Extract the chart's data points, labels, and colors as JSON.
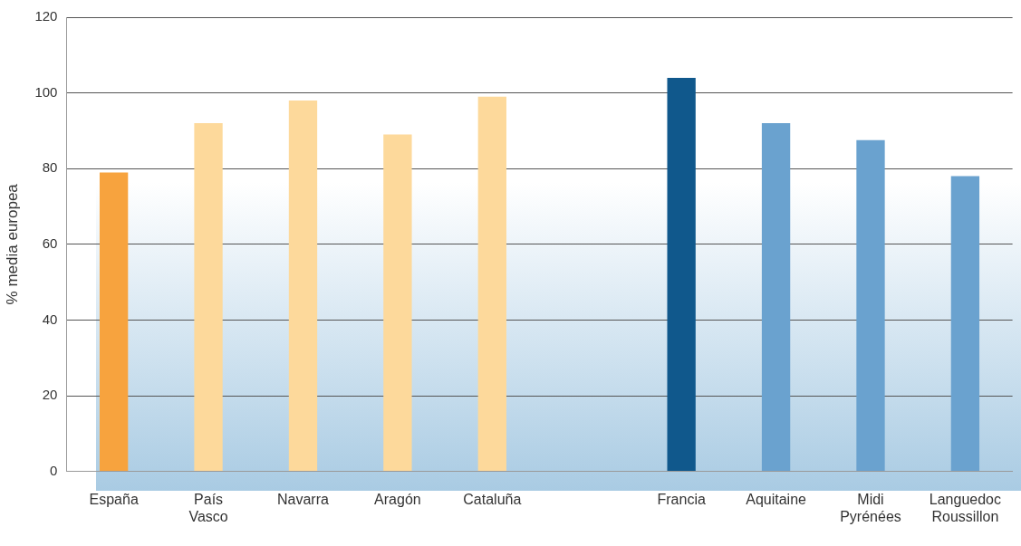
{
  "chart_data": {
    "type": "bar",
    "ylabel": "% media europea",
    "categories": [
      "España",
      "País Vasco",
      "Navarra",
      "Aragón",
      "Cataluña",
      null,
      "Francia",
      "Aquitaine",
      "Midi Pyrénées",
      "Languedoc Roussillon"
    ],
    "values": [
      79,
      92,
      98,
      89,
      99,
      null,
      104,
      92,
      87.5,
      78
    ],
    "colors": [
      "#f7a33e",
      "#fdd99b",
      "#fdd99b",
      "#fdd99b",
      "#fdd99b",
      "#cccccc",
      "#10588c",
      "#6aa2cf",
      "#6aa2cf",
      "#6aa2cf"
    ],
    "ylim": [
      0,
      120
    ],
    "yticks": [
      0,
      20,
      40,
      60,
      80,
      100,
      120
    ],
    "grid": "y",
    "legend": false
  }
}
